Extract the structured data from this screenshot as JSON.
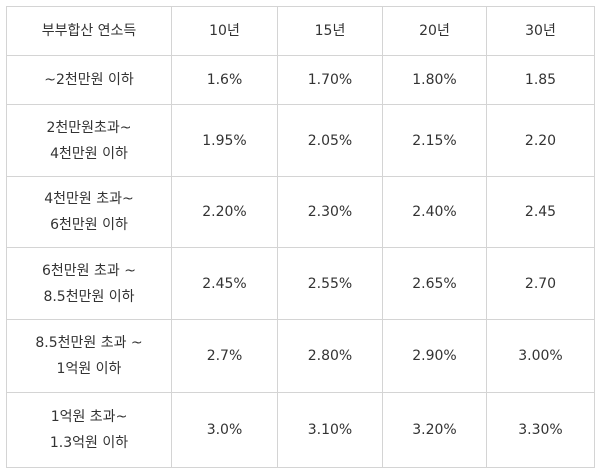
{
  "table": {
    "header": [
      "부부합산 연소득",
      "10년",
      "15년",
      "20년",
      "30년"
    ],
    "rows": [
      [
        "~2천만원 이하",
        "1.6%",
        "1.70%",
        "1.80%",
        "1.85"
      ],
      [
        "2천만원초과~\n4천만원 이하",
        "1.95%",
        "2.05%",
        "2.15%",
        "2.20"
      ],
      [
        "4천만원 초과~\n6천만원 이하",
        "2.20%",
        "2.30%",
        "2.40%",
        "2.45"
      ],
      [
        "6천만원 초과 ~\n8.5천만원 이하",
        "2.45%",
        "2.55%",
        "2.65%",
        "2.70"
      ],
      [
        "8.5천만원 초과 ~\n1억원 이하",
        "2.7%",
        "2.80%",
        "2.90%",
        "3.00%"
      ],
      [
        "1억원 초과~\n1.3억원 이하",
        "3.0%",
        "3.10%",
        "3.20%",
        "3.30%"
      ]
    ]
  }
}
